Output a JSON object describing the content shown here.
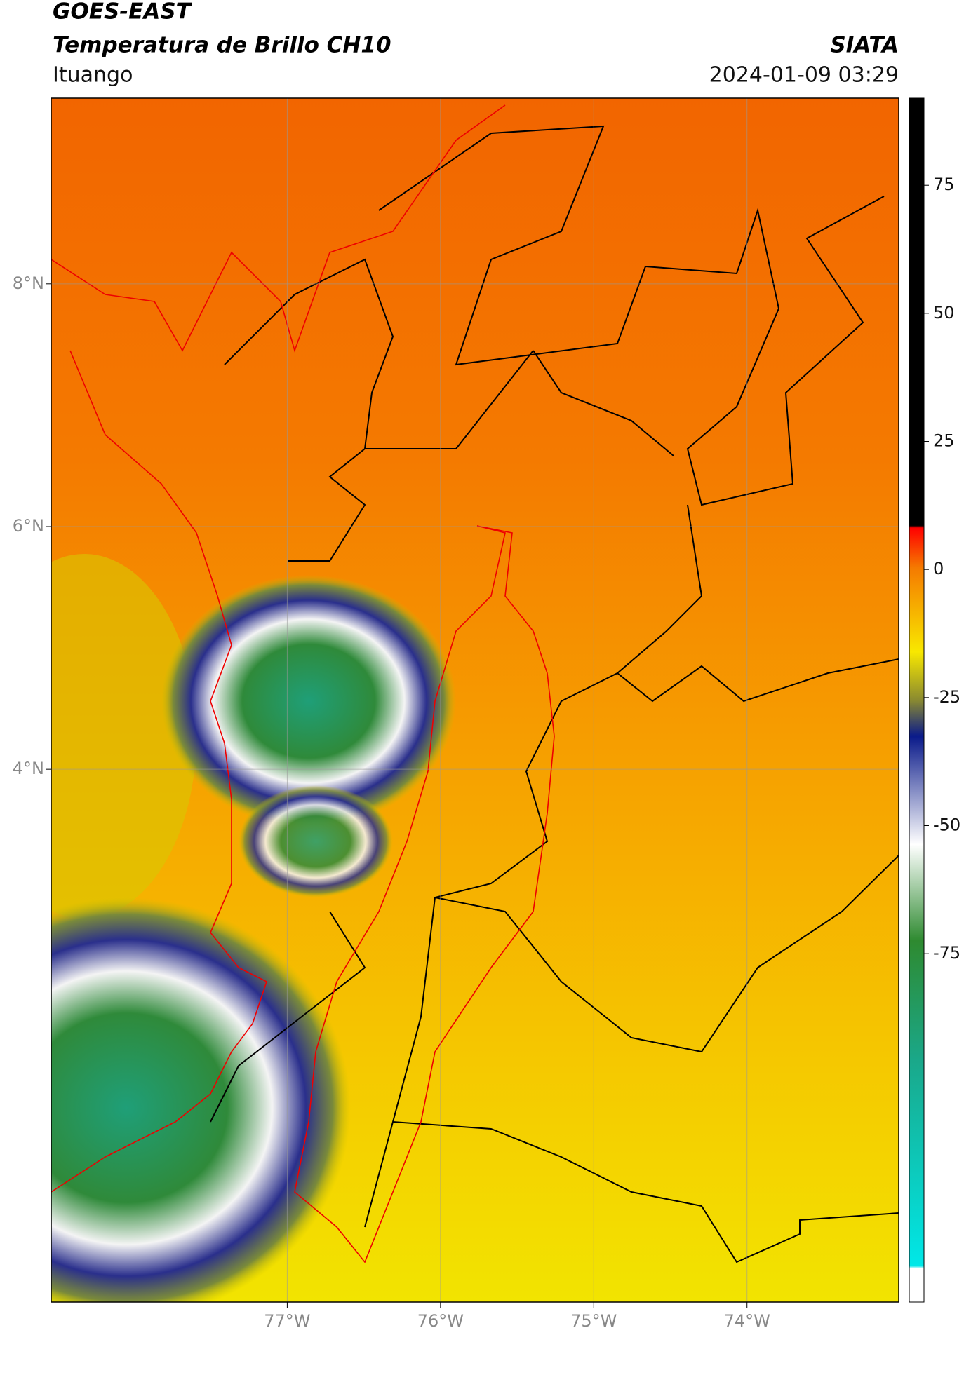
{
  "header": {
    "title": "GOES-EAST",
    "subtitle": "Temperatura de Brillo CH10",
    "source": "SIATA",
    "location": "Ituango",
    "datetime": "2024-01-09 03:29"
  },
  "map": {
    "xlim": [
      -78.54,
      -73.01
    ],
    "ylim": [
      -0.39,
      9.53
    ],
    "xticks": [
      {
        "value": -77,
        "label": "77°W"
      },
      {
        "value": -76,
        "label": "76°W"
      },
      {
        "value": -75,
        "label": "75°W"
      },
      {
        "value": -74,
        "label": "74°W"
      }
    ],
    "yticks": [
      {
        "value": 8,
        "label": "8°N"
      },
      {
        "value": 6,
        "label": "6°N"
      },
      {
        "value": 4,
        "label": "4°N"
      }
    ],
    "grid": true
  },
  "colorbar": {
    "ylim": [
      -143,
      92
    ],
    "yticks": [
      75,
      50,
      25,
      0,
      -25,
      -50,
      -75
    ]
  }
}
